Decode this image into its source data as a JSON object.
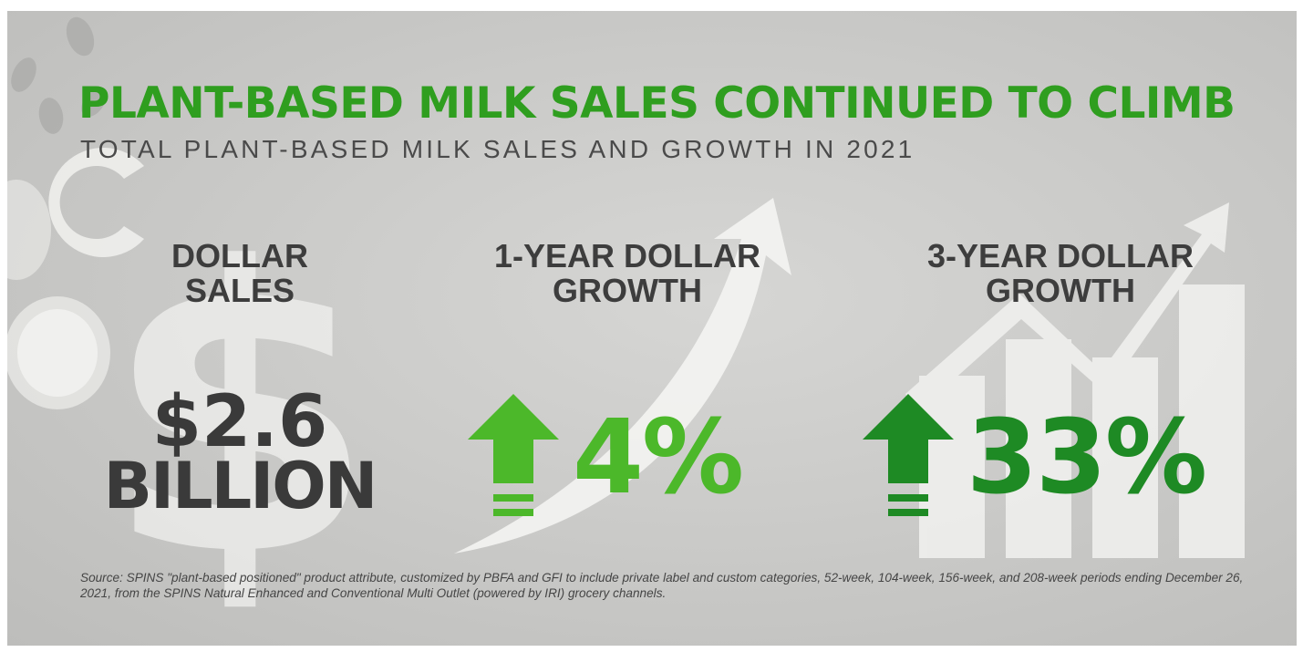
{
  "header": {
    "title": "PLANT-BASED MILK SALES CONTINUED TO CLIMB",
    "subtitle": "TOTAL PLANT-BASED MILK SALES AND GROWTH IN 2021"
  },
  "stats": [
    {
      "label_lines": [
        "DOLLAR",
        "SALES"
      ],
      "value_lines": [
        "$2.6",
        "BILLION"
      ]
    },
    {
      "label_lines": [
        "1-YEAR DOLLAR",
        "GROWTH"
      ],
      "value": "4%",
      "direction": "up",
      "color": "#4cb82a"
    },
    {
      "label_lines": [
        "3-YEAR DOLLAR",
        "GROWTH"
      ],
      "value": "33%",
      "direction": "up",
      "color": "#1e8a24"
    }
  ],
  "footer": {
    "source": "Source: SPINS \"plant-based positioned\" product attribute, customized by PBFA and GFI to include private label and custom categories, 52-week, 104-week, 156-week, and 208-week periods ending December 26, 2021, from the SPINS Natural Enhanced and Conventional Multi Outlet (powered by IRI) grocery channels."
  },
  "icons": [
    "up-arrow-icon",
    "dollar-sign-icon",
    "trend-arrow-icon",
    "bar-chart-icon"
  ],
  "colors": {
    "title_green": "#2f9e1f",
    "light_green": "#4cb82a",
    "dark_green": "#1e8a24",
    "text_dark": "#3a3a3a"
  }
}
